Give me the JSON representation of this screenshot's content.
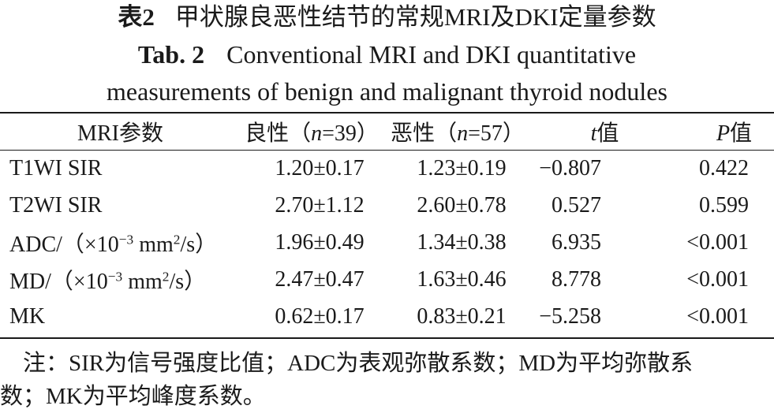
{
  "caption": {
    "cn_label": "表2",
    "cn_text": "甲状腺良恶性结节的常规MRI及DKI定量参数",
    "en_label": "Tab. 2",
    "en_line1": "Conventional MRI and DKI quantitative",
    "en_line2": "measurements of benign and malignant thyroid nodules"
  },
  "table": {
    "headers": {
      "param": "MRI参数",
      "benign_prefix": "良性（",
      "benign_n": "n",
      "benign_suffix": "=39）",
      "malignant_prefix": "恶性（",
      "malignant_n": "n",
      "malignant_suffix": "=57）",
      "t_sym": "t",
      "t_suffix": "值",
      "p_sym": "P",
      "p_suffix": "值"
    },
    "rows": [
      {
        "param": "T1WI SIR",
        "unit_pre": "",
        "unit_exp1": "",
        "unit_mid": "",
        "unit_exp2": "",
        "unit_post": "",
        "benign": "1.20±0.17",
        "malignant": "1.23±0.19",
        "t": "−0.807",
        "p": "0.422"
      },
      {
        "param": "T2WI SIR",
        "unit_pre": "",
        "unit_exp1": "",
        "unit_mid": "",
        "unit_exp2": "",
        "unit_post": "",
        "benign": "2.70±1.12",
        "malignant": "2.60±0.78",
        "t": "0.527",
        "p": "0.599"
      },
      {
        "param": "ADC/",
        "unit_pre": "（×10",
        "unit_exp1": "−3",
        "unit_mid": " mm",
        "unit_exp2": "2",
        "unit_post": "/s）",
        "benign": "1.96±0.49",
        "malignant": "1.34±0.38",
        "t": "6.935",
        "p": "<0.001"
      },
      {
        "param": "MD/",
        "unit_pre": "（×10",
        "unit_exp1": "−3",
        "unit_mid": " mm",
        "unit_exp2": "2",
        "unit_post": "/s）",
        "benign": "2.47±0.47",
        "malignant": "1.63±0.46",
        "t": "8.778",
        "p": "<0.001"
      },
      {
        "param": "MK",
        "unit_pre": "",
        "unit_exp1": "",
        "unit_mid": "",
        "unit_exp2": "",
        "unit_post": "",
        "benign": "0.62±0.17",
        "malignant": "0.83±0.21",
        "t": "−5.258",
        "p": "<0.001"
      }
    ]
  },
  "note": {
    "line1": "注：SIR为信号强度比值；ADC为表观弥散系数；MD为平均弥散系",
    "line2": "数；MK为平均峰度系数。"
  }
}
